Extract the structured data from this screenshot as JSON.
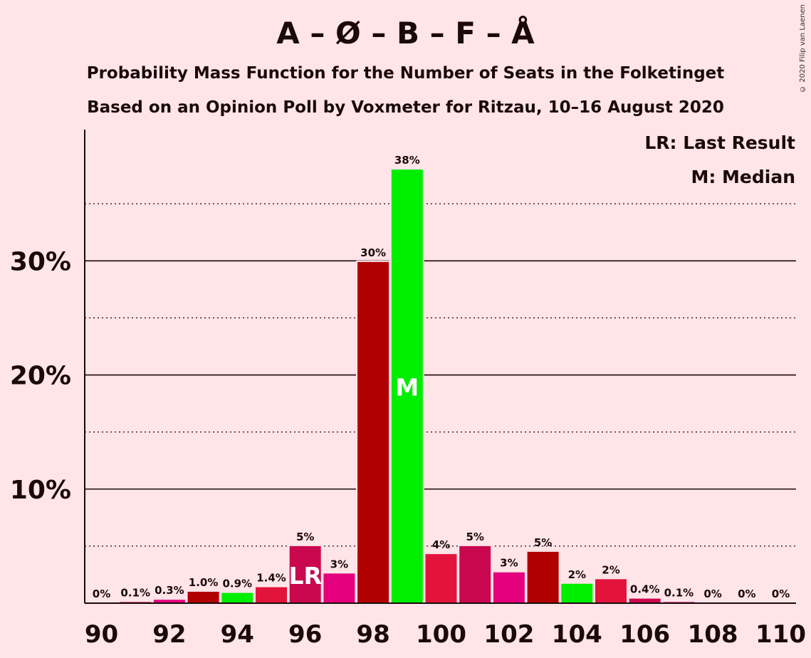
{
  "title": "A – Ø – B – F – Å",
  "subtitle_1": "Probability Mass Function for the Number of Seats in the Folketinget",
  "subtitle_2": "Based on an Opinion Poll by Voxmeter for Ritzau, 10–16 August 2020",
  "copyright": "© 2020 Filip van Laenen",
  "legend": {
    "last_result": "LR: Last Result",
    "median": "M: Median"
  },
  "chart_data": {
    "type": "bar",
    "x": [
      90,
      91,
      92,
      93,
      94,
      95,
      96,
      97,
      98,
      99,
      100,
      101,
      102,
      103,
      104,
      105,
      106,
      107,
      108,
      109,
      110
    ],
    "values": [
      0,
      0.1,
      0.3,
      1.0,
      0.9,
      1.4,
      5,
      2.6,
      29.9,
      38,
      4.3,
      5,
      2.7,
      4.5,
      1.7,
      2.1,
      0.4,
      0.1,
      0,
      0,
      0
    ],
    "labels": [
      "0%",
      "0.1%",
      "0.3%",
      "1.0%",
      "0.9%",
      "1.4%",
      "5%",
      "3%",
      "30%",
      "38%",
      "4%",
      "5%",
      "3%",
      "5%",
      "2%",
      "2%",
      "0.4%",
      "0.1%",
      "0%",
      "0%",
      "0%"
    ],
    "bar_colors": [
      "#C9084F",
      "#C9084F",
      "#E5007D",
      "#B00000",
      "#00EE00",
      "#E3143C",
      "#C9084F",
      "#E5007D",
      "#B00000",
      "#00EE00",
      "#E3143C",
      "#C9084F",
      "#E5007D",
      "#B00000",
      "#00EE00",
      "#E3143C",
      "#C9084F",
      "#E5007D",
      "#B00000",
      "#00EE00",
      "#E3143C"
    ],
    "x_tick_labels": [
      "90",
      "92",
      "94",
      "96",
      "98",
      "100",
      "102",
      "104",
      "106",
      "108",
      "110"
    ],
    "y_tick_labels": [
      "10%",
      "20%",
      "30%"
    ],
    "y_ticks": [
      10,
      20,
      30
    ],
    "y_minor_ticks": [
      5,
      15,
      25,
      35
    ],
    "ylim": [
      0,
      41.5
    ],
    "last_result_seat": 96,
    "last_result_marker": "LR",
    "median_seat": 99,
    "median_marker": "M",
    "grid": true
  }
}
